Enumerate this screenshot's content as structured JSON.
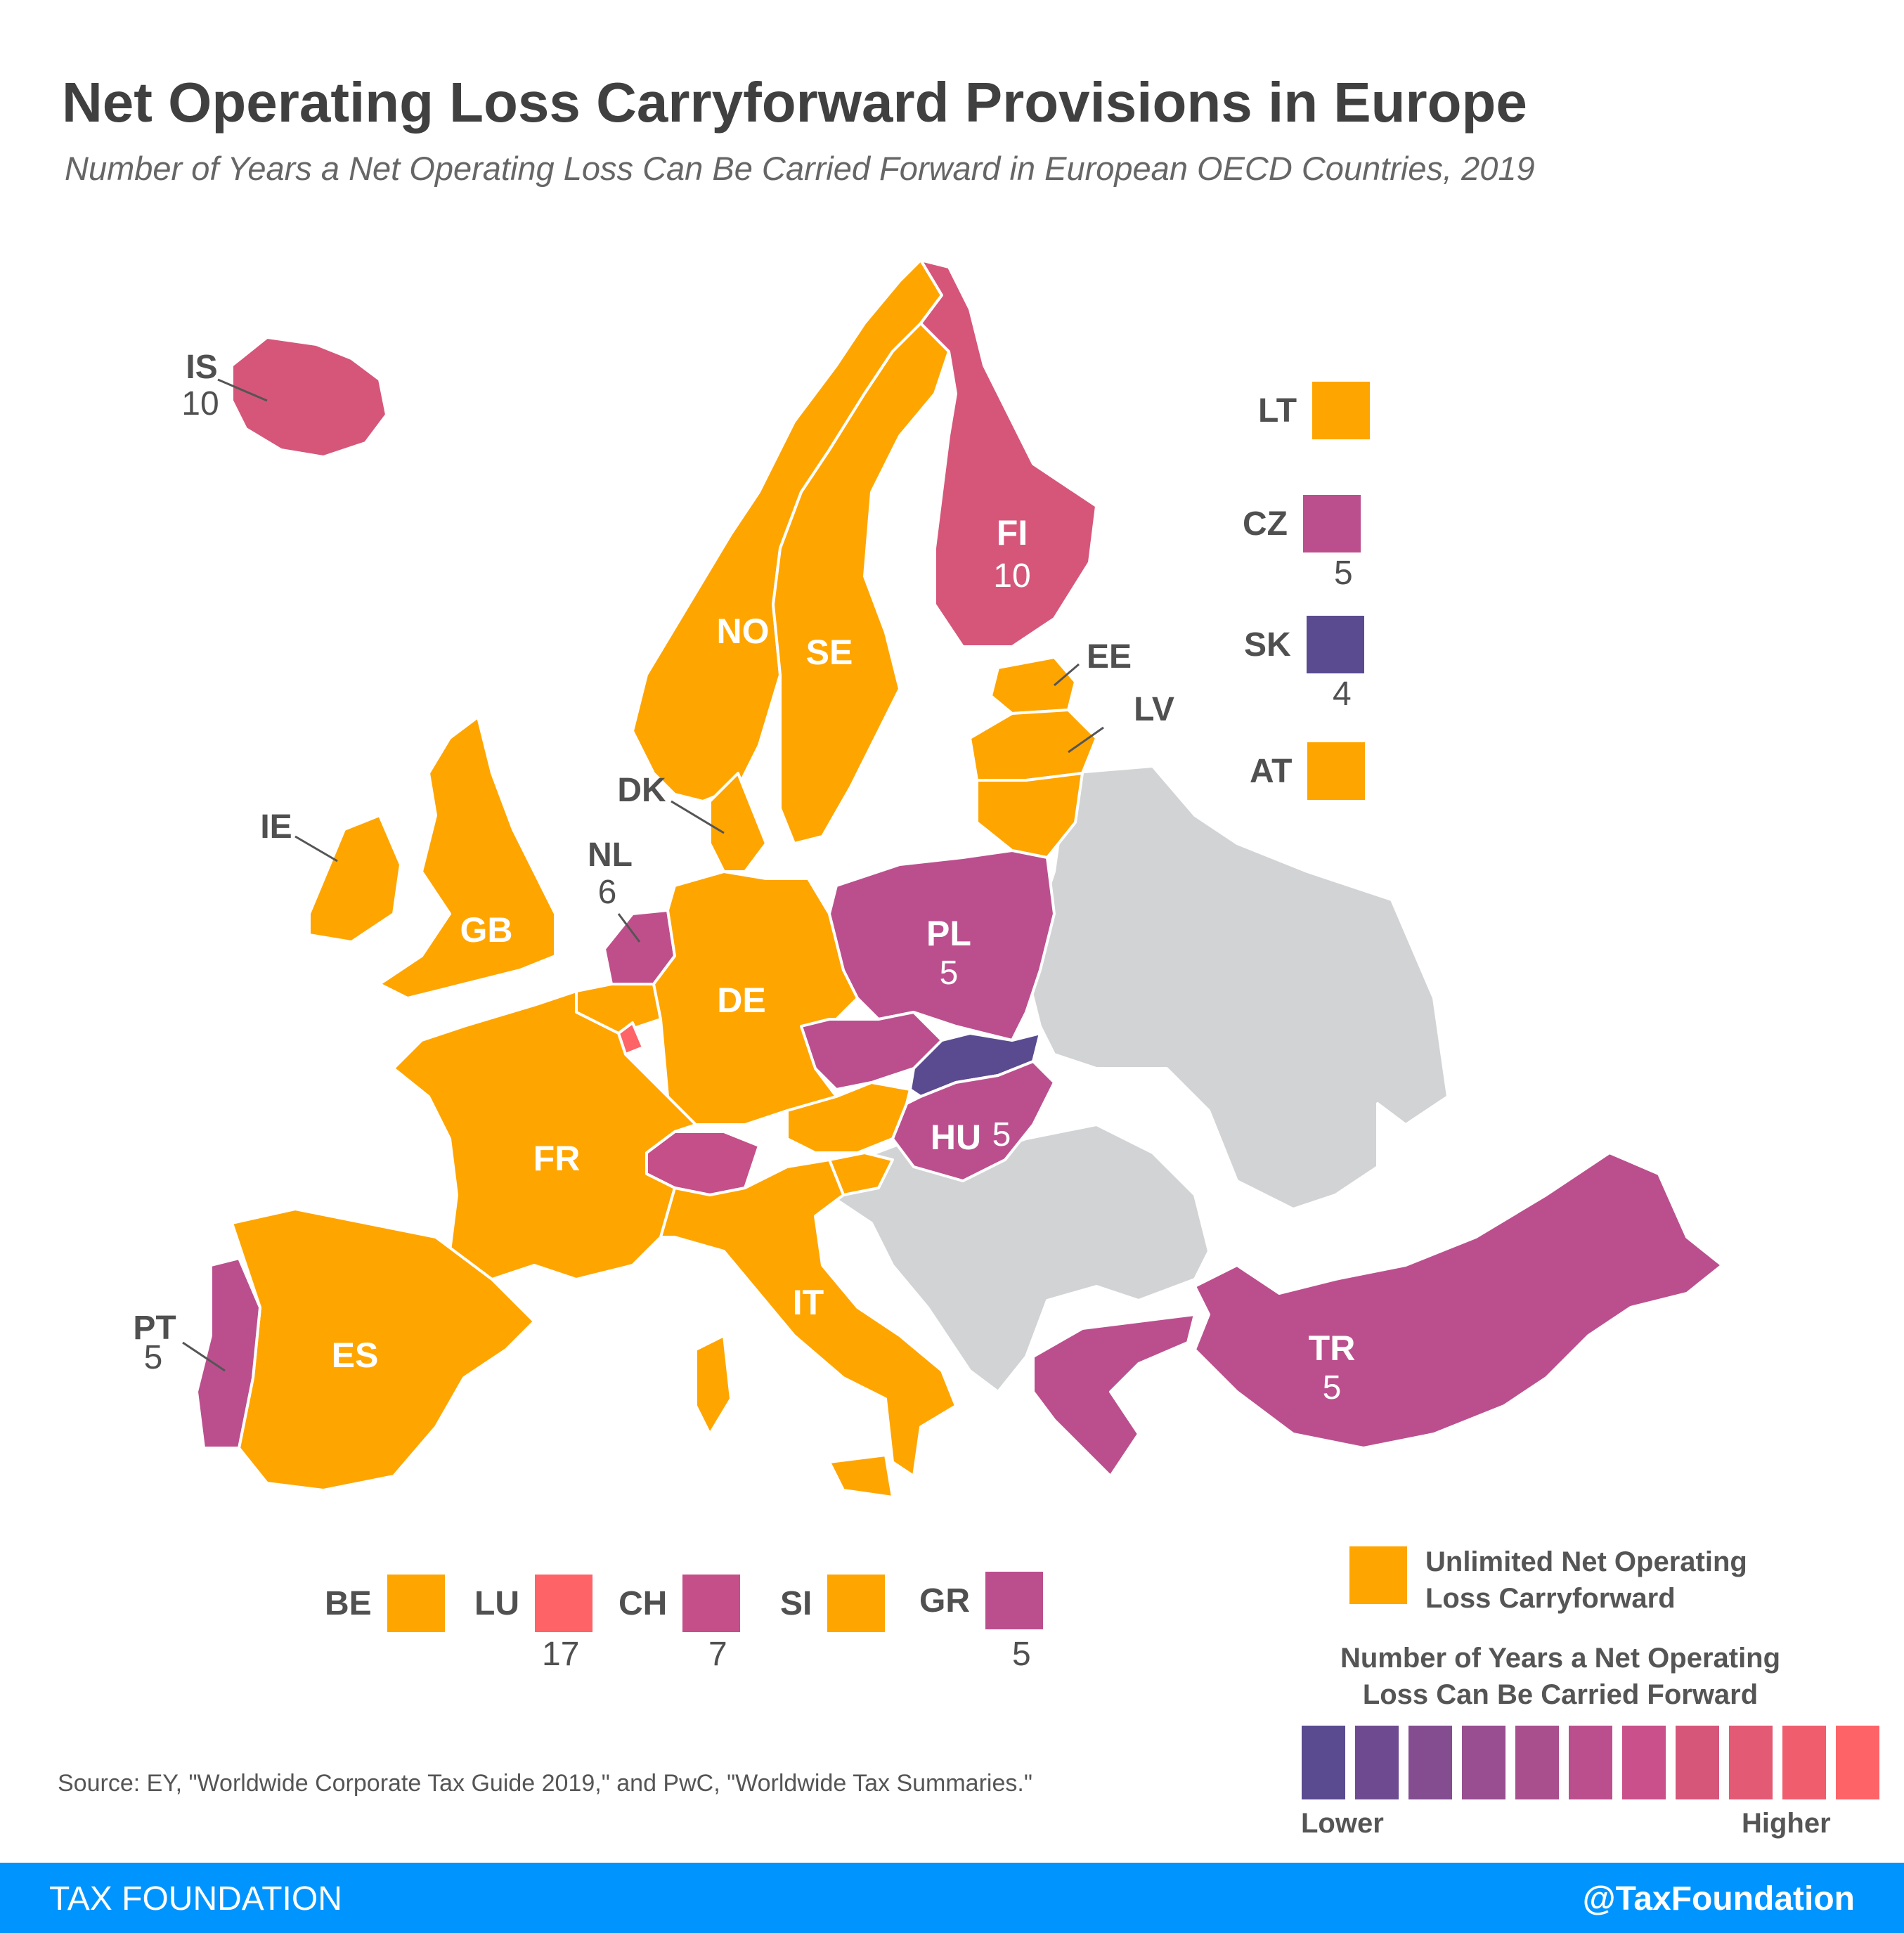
{
  "title": "Net Operating Loss Carryforward Provisions in Europe",
  "subtitle": "Number of Years a Net Operating Loss Can Be Carried Forward in European OECD Countries, 2019",
  "colors": {
    "unlimited": "#ffa500",
    "other": "#d1d3d4",
    "y4": "#5a4a90",
    "y5": "#bb4f8e",
    "y6": "#bf4f8a",
    "y7": "#c54f88",
    "y10": "#d6567a",
    "y17": "#fe6368"
  },
  "countries": {
    "IS": {
      "code": "IS",
      "value": "10"
    },
    "FI": {
      "code": "FI",
      "value": "10"
    },
    "NO": {
      "code": "NO"
    },
    "SE": {
      "code": "SE"
    },
    "EE": {
      "code": "EE"
    },
    "LV": {
      "code": "LV"
    },
    "DK": {
      "code": "DK"
    },
    "IE": {
      "code": "IE"
    },
    "GB": {
      "code": "GB"
    },
    "NL": {
      "code": "NL",
      "value": "6"
    },
    "DE": {
      "code": "DE"
    },
    "PL": {
      "code": "PL",
      "value": "5"
    },
    "FR": {
      "code": "FR"
    },
    "HU": {
      "code": "HU",
      "value": "5"
    },
    "ES": {
      "code": "ES"
    },
    "IT": {
      "code": "IT"
    },
    "PT": {
      "code": "PT",
      "value": "5"
    },
    "TR": {
      "code": "TR",
      "value": "5"
    }
  },
  "keys": {
    "LT": {
      "code": "LT"
    },
    "CZ": {
      "code": "CZ",
      "value": "5"
    },
    "SK": {
      "code": "SK",
      "value": "4"
    },
    "AT": {
      "code": "AT"
    },
    "BE": {
      "code": "BE"
    },
    "LU": {
      "code": "LU",
      "value": "17"
    },
    "CH": {
      "code": "CH",
      "value": "7"
    },
    "SI": {
      "code": "SI"
    },
    "GR": {
      "code": "GR",
      "value": "5"
    }
  },
  "legend": {
    "unlimited_line1": "Unlimited Net Operating",
    "unlimited_line2": "Loss Carryforward",
    "scale_title_line1": "Number of Years a Net Operating",
    "scale_title_line2": "Loss Can Be Carried Forward",
    "scale_colors": [
      "#5a4a90",
      "#6e4b90",
      "#834d90",
      "#984e90",
      "#a94f8e",
      "#bb4f8e",
      "#c9508a",
      "#d6567a",
      "#e35a75",
      "#f05e6e",
      "#fe6368"
    ],
    "lower": "Lower",
    "higher": "Higher"
  },
  "source": "Source: EY, \"Worldwide Corporate Tax Guide 2019,\" and PwC, \"Worldwide Tax Summaries.\"",
  "footer": {
    "brand": "TAX FOUNDATION",
    "handle": "@TaxFoundation"
  }
}
